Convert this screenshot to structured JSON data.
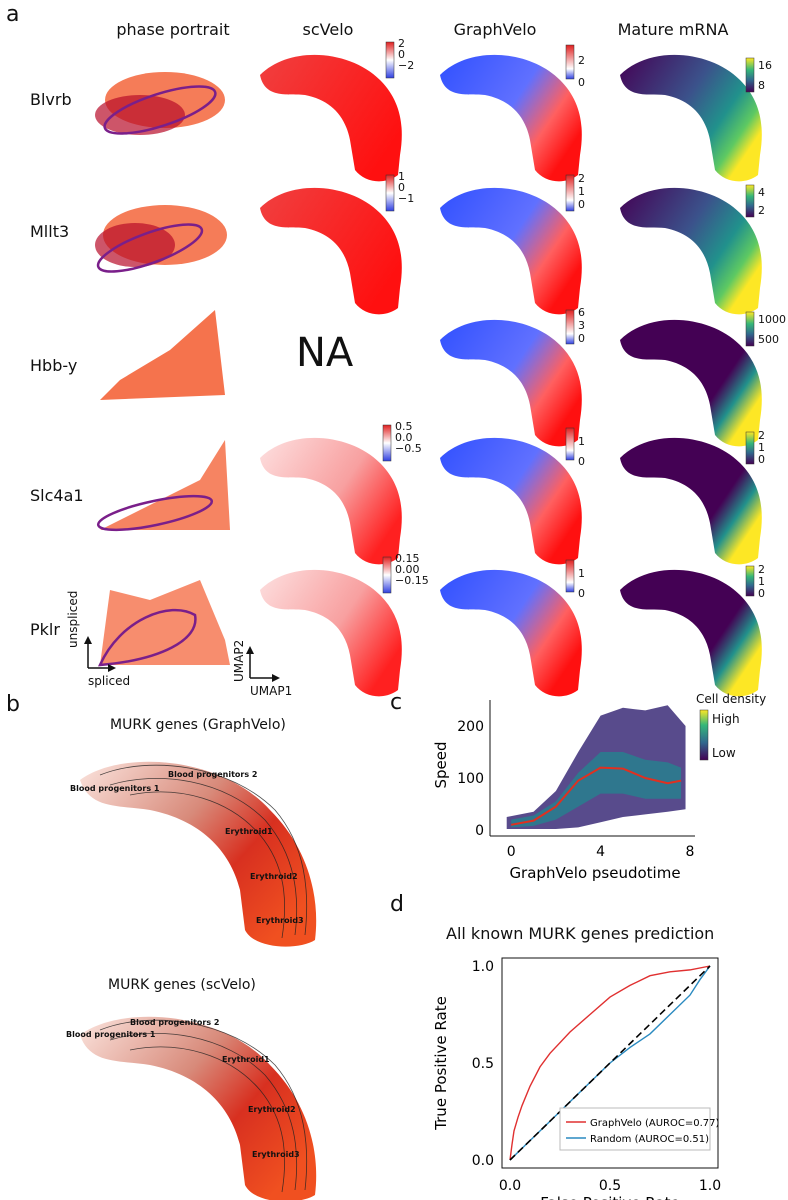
{
  "panels": {
    "a": "a",
    "b": "b",
    "c": "c",
    "d": "d"
  },
  "columns": [
    "phase portrait",
    "scVelo",
    "GraphVelo",
    "Mature mRNA"
  ],
  "genes": [
    {
      "name": "Blvrb",
      "scvelo_ticks": [
        "2",
        "0",
        "−2"
      ],
      "graphvelo_ticks": [
        "2",
        "0"
      ],
      "mature_ticks": [
        "16",
        "8"
      ]
    },
    {
      "name": "Mllt3",
      "scvelo_ticks": [
        "1",
        "0",
        "−1"
      ],
      "graphvelo_ticks": [
        "2",
        "1",
        "0"
      ],
      "mature_ticks": [
        "4",
        "2"
      ]
    },
    {
      "name": "Hbb-y",
      "scvelo_na": "NA",
      "graphvelo_ticks": [
        "6",
        "3",
        "0"
      ],
      "mature_ticks": [
        "1000",
        "500"
      ]
    },
    {
      "name": "Slc4a1",
      "scvelo_ticks": [
        "0.5",
        "0.0",
        "−0.5"
      ],
      "graphvelo_ticks": [
        "1",
        "0"
      ],
      "mature_ticks": [
        "2",
        "1",
        "0"
      ]
    },
    {
      "name": "Pklr",
      "scvelo_ticks": [
        "0.15",
        "0.00",
        "−0.15"
      ],
      "graphvelo_ticks": [
        "1",
        "0"
      ],
      "mature_ticks": [
        "2",
        "1",
        "0"
      ]
    }
  ],
  "phase_axes": {
    "x": "spliced",
    "y": "unspliced"
  },
  "umap_axes": {
    "x": "UMAP1",
    "y": "UMAP2"
  },
  "panel_b": {
    "titles": [
      "MURK genes (GraphVelo)",
      "MURK genes (scVelo)"
    ],
    "labels": [
      "Blood progenitors 1",
      "Blood progenitors 2",
      "Erythroid1",
      "Erythroid2",
      "Erythroid3"
    ]
  },
  "chart_data": [
    {
      "type": "scatter",
      "xlabel": "GraphVelo pseudotime",
      "ylabel": "Speed",
      "xticks": [
        "0",
        "4",
        "8"
      ],
      "yticks": [
        "0",
        "100",
        "200"
      ],
      "xlim": [
        -0.5,
        8
      ],
      "ylim": [
        0,
        250
      ],
      "colorbar": {
        "title": "Cell density",
        "high": "High",
        "low": "Low"
      },
      "trend": {
        "x": [
          0,
          1,
          2,
          3,
          4,
          5,
          6,
          7,
          7.6
        ],
        "y": [
          10,
          18,
          45,
          95,
          120,
          118,
          100,
          90,
          95
        ]
      }
    },
    {
      "type": "line",
      "title": "All known MURK genes prediction",
      "xlabel": "False Positive Rate",
      "ylabel": "True Positive Rate",
      "xticks": [
        "0.0",
        "0.5",
        "1.0"
      ],
      "yticks": [
        "0.0",
        "0.5",
        "1.0"
      ],
      "xlim": [
        0,
        1
      ],
      "ylim": [
        0,
        1
      ],
      "series": [
        {
          "name": "GraphVelo (AUROC=0.77)",
          "color": "#e03030",
          "x": [
            0,
            0.01,
            0.02,
            0.04,
            0.06,
            0.1,
            0.15,
            0.2,
            0.3,
            0.4,
            0.5,
            0.6,
            0.7,
            0.8,
            0.9,
            1.0
          ],
          "y": [
            0,
            0.08,
            0.15,
            0.22,
            0.28,
            0.38,
            0.48,
            0.55,
            0.66,
            0.75,
            0.84,
            0.9,
            0.95,
            0.97,
            0.98,
            1.0
          ]
        },
        {
          "name": "Random (AUROC=0.51)",
          "color": "#2a8ac0",
          "x": [
            0,
            0.1,
            0.2,
            0.3,
            0.4,
            0.5,
            0.6,
            0.7,
            0.8,
            0.9,
            0.95,
            1.0
          ],
          "y": [
            0,
            0.1,
            0.2,
            0.3,
            0.4,
            0.5,
            0.58,
            0.65,
            0.75,
            0.85,
            0.93,
            1.0
          ]
        },
        {
          "name": "diagonal",
          "color": "#000000",
          "x": [
            0,
            1
          ],
          "y": [
            0,
            1
          ]
        }
      ]
    }
  ]
}
